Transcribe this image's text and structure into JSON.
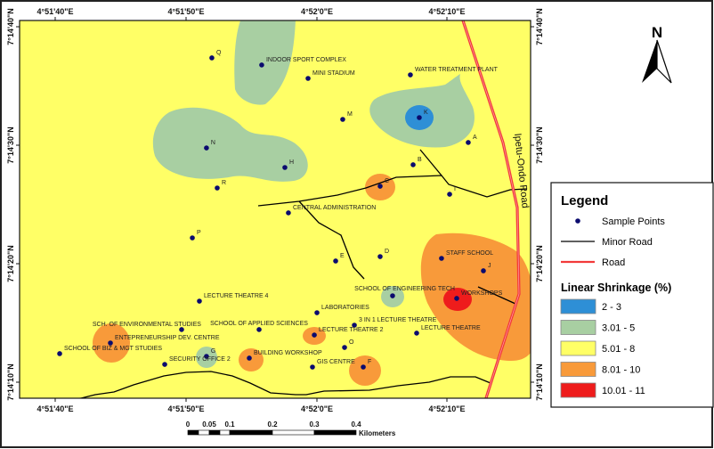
{
  "map": {
    "background_class_color": "#FFFF66",
    "road_label": "Ipetu-Ondo Road",
    "north_label": "N",
    "lon_ticks": [
      "4°51'40\"E",
      "4°51'50\"E",
      "4°52'0\"E",
      "4°52'10\"E"
    ],
    "lat_ticks": [
      "7°14'40\"N",
      "7°14'30\"N",
      "7°14'20\"N",
      "7°14'10\"N"
    ],
    "sample_points": [
      {
        "label": "Q",
        "lon": 4.864436,
        "lat": 7.243714
      },
      {
        "label": "INDOOR SPORT COMPLEX",
        "lon": 4.865494,
        "lat": 7.243547
      },
      {
        "label": "MINI STADIUM",
        "lon": 4.866478,
        "lat": 7.243233
      },
      {
        "label": "WATER TREATMENT PLANT",
        "lon": 4.86865,
        "lat": 7.243316
      },
      {
        "label": "M",
        "lon": 4.867214,
        "lat": 7.242272
      },
      {
        "label": "K",
        "lon": 4.868839,
        "lat": 7.242314
      },
      {
        "label": "N",
        "lon": 4.864322,
        "lat": 7.241602
      },
      {
        "label": "A",
        "lon": 4.869878,
        "lat": 7.24173
      },
      {
        "label": "H",
        "lon": 4.865986,
        "lat": 7.241144
      },
      {
        "label": "B",
        "lon": 4.868708,
        "lat": 7.241208
      },
      {
        "label": "R",
        "lon": 4.86455,
        "lat": 7.240664
      },
      {
        "label": "C",
        "lon": 4.868008,
        "lat": 7.240705
      },
      {
        "label": "I",
        "lon": 4.869483,
        "lat": 7.240516
      },
      {
        "label": "CENTRAL ADMINISTRATION",
        "lon": 4.866061,
        "lat": 7.24008
      },
      {
        "label": "P",
        "lon": 4.864022,
        "lat": 7.239494
      },
      {
        "label": "E",
        "lon": 4.867064,
        "lat": 7.238952
      },
      {
        "label": "D",
        "lon": 4.868008,
        "lat": 7.239055
      },
      {
        "label": "STAFF SCHOOL",
        "lon": 4.869311,
        "lat": 7.239014
      },
      {
        "label": "J",
        "lon": 4.8702,
        "lat": 7.238722
      },
      {
        "label": "SCHOOL OF ENGINEERING TECH",
        "lon": 4.868272,
        "lat": 7.238136
      },
      {
        "label": "WORKSHOPS",
        "lon": 4.869633,
        "lat": 7.238075
      },
      {
        "label": "LECTURE THEATRE 4",
        "lon": 4.864172,
        "lat": 7.238011
      },
      {
        "label": "LABORATORIES",
        "lon": 4.866667,
        "lat": 7.237739
      },
      {
        "label": "SCH. OF ENVIRONMENTAL STUDIES",
        "lon": 4.863794,
        "lat": 7.237344
      },
      {
        "label": "SCHOOL OF APPLIED SCIENCES",
        "lon": 4.865439,
        "lat": 7.237344
      },
      {
        "label": "3 IN 1 LECTURE THEATRE",
        "lon": 4.867461,
        "lat": 7.237447
      },
      {
        "label": "LECTURE THEATRE 2",
        "lon": 4.866611,
        "lat": 7.237216
      },
      {
        "label": "LECTURE THEATRE",
        "lon": 4.868783,
        "lat": 7.237261
      },
      {
        "label": "ENTEPRENEURSHIP DEV. CENTRE",
        "lon": 4.862283,
        "lat": 7.23703
      },
      {
        "label": "O",
        "lon": 4.867253,
        "lat": 7.236925
      },
      {
        "label": "SCHOOL OF BIZ & MGT STUDIES",
        "lon": 4.861206,
        "lat": 7.23678
      },
      {
        "label": "G",
        "lon": 4.864322,
        "lat": 7.236716
      },
      {
        "label": "BUILDING WORKSHOP",
        "lon": 4.865231,
        "lat": 7.236675
      },
      {
        "label": "SECURITY OFFICE 2",
        "lon": 4.863436,
        "lat": 7.236527
      },
      {
        "label": "GIS CENTRE",
        "lon": 4.866572,
        "lat": 7.236466
      },
      {
        "label": "F",
        "lon": 4.86765,
        "lat": 7.236466
      }
    ]
  },
  "scale_bar": {
    "labels": [
      "0",
      "0.05",
      "0.1",
      "0.2",
      "0.3",
      "0.4"
    ],
    "unit": "Kilometers"
  },
  "legend": {
    "title": "Legend",
    "items": [
      {
        "label": "Sample Points",
        "symbol": "dot",
        "color": "#0B0B6E"
      },
      {
        "label": "Minor Road",
        "symbol": "line",
        "color": "#000000"
      },
      {
        "label": "Road",
        "symbol": "line",
        "color": "#F23A3A"
      }
    ],
    "classes_title": "Linear Shrinkage (%)",
    "classes": [
      {
        "label": "2 - 3",
        "color": "#2E8FD6"
      },
      {
        "label": "3.01 - 5",
        "color": "#A8CFA2"
      },
      {
        "label": "5.01 - 8",
        "color": "#FFFF66"
      },
      {
        "label": "8.01 - 10",
        "color": "#F89A3A"
      },
      {
        "label": "10.01 - 11",
        "color": "#EE1C1C"
      }
    ]
  }
}
